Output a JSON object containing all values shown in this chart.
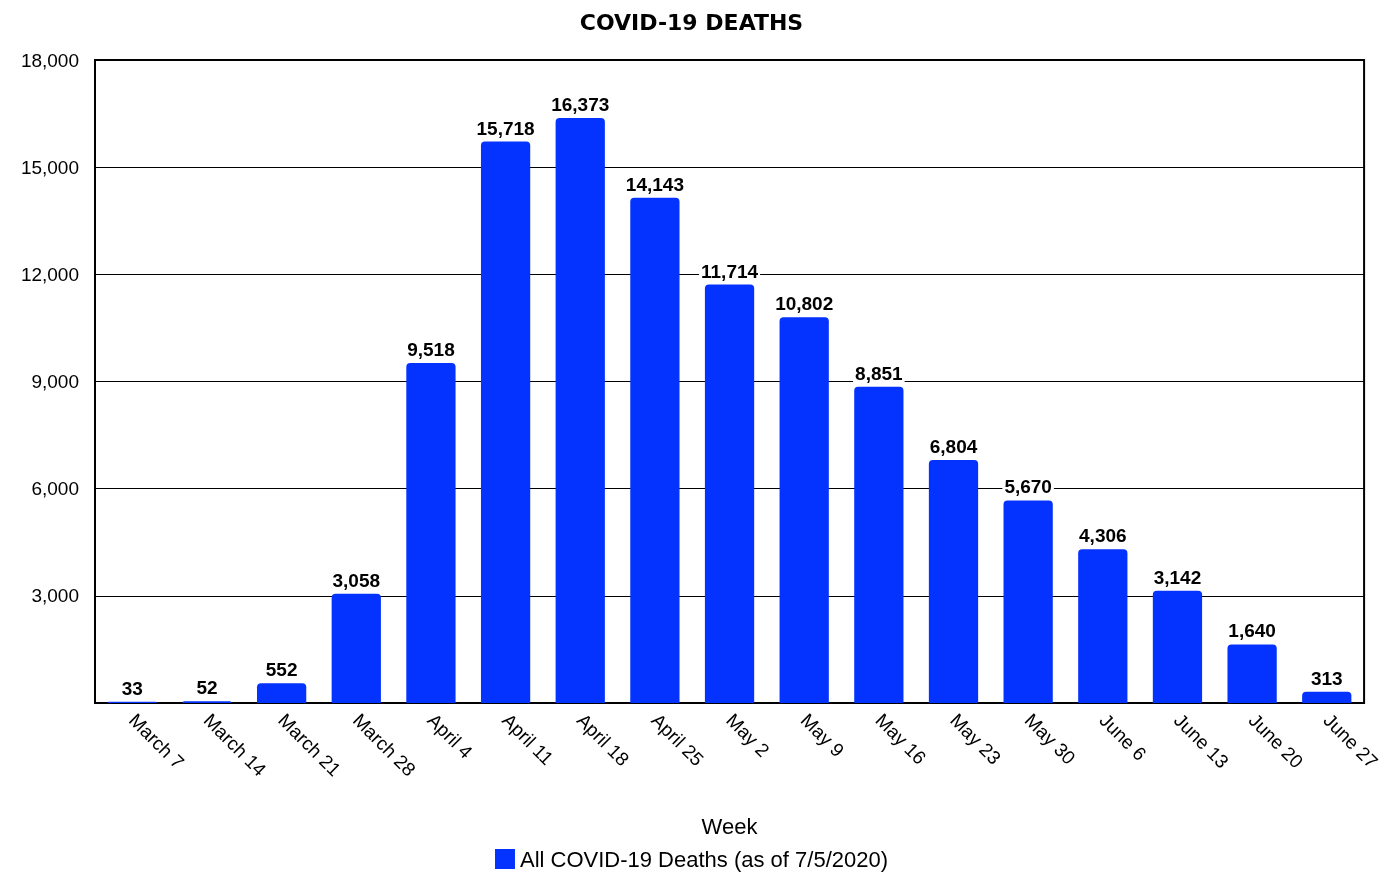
{
  "chart_data": {
    "type": "bar",
    "title": "COVID-19 DEATHS",
    "xlabel": "Week",
    "categories": [
      "March 7",
      "March 14",
      "March 21",
      "March 28",
      "April 4",
      "April 11",
      "April 18",
      "April 25",
      "May 2",
      "May 9",
      "May 16",
      "May 23",
      "May 30",
      "June 6",
      "June 13",
      "June 20",
      "June 27"
    ],
    "series": [
      {
        "name": "All COVID-19 Deaths (as of 7/5/2020)",
        "color": "#0433ff",
        "values": [
          33,
          52,
          552,
          3058,
          9518,
          15718,
          16373,
          14143,
          11714,
          10802,
          8851,
          6804,
          5670,
          4306,
          3142,
          1640,
          313
        ],
        "value_labels": [
          "33",
          "52",
          "552",
          "3,058",
          "9,518",
          "15,718",
          "16,373",
          "14,143",
          "11,714",
          "10,802",
          "8,851",
          "6,804",
          "5,670",
          "4,306",
          "3,142",
          "1,640",
          "313"
        ]
      }
    ],
    "ylim": [
      0,
      18000
    ],
    "yticks": [
      {
        "value": 0,
        "label": null
      },
      {
        "value": 3000,
        "label": "3,000"
      },
      {
        "value": 6000,
        "label": "6,000"
      },
      {
        "value": 9000,
        "label": "9,000"
      },
      {
        "value": 12000,
        "label": "12,000"
      },
      {
        "value": 15000,
        "label": "15,000"
      },
      {
        "value": 18000,
        "label": "18,000"
      }
    ],
    "grid": "y",
    "legend": "bottom"
  }
}
